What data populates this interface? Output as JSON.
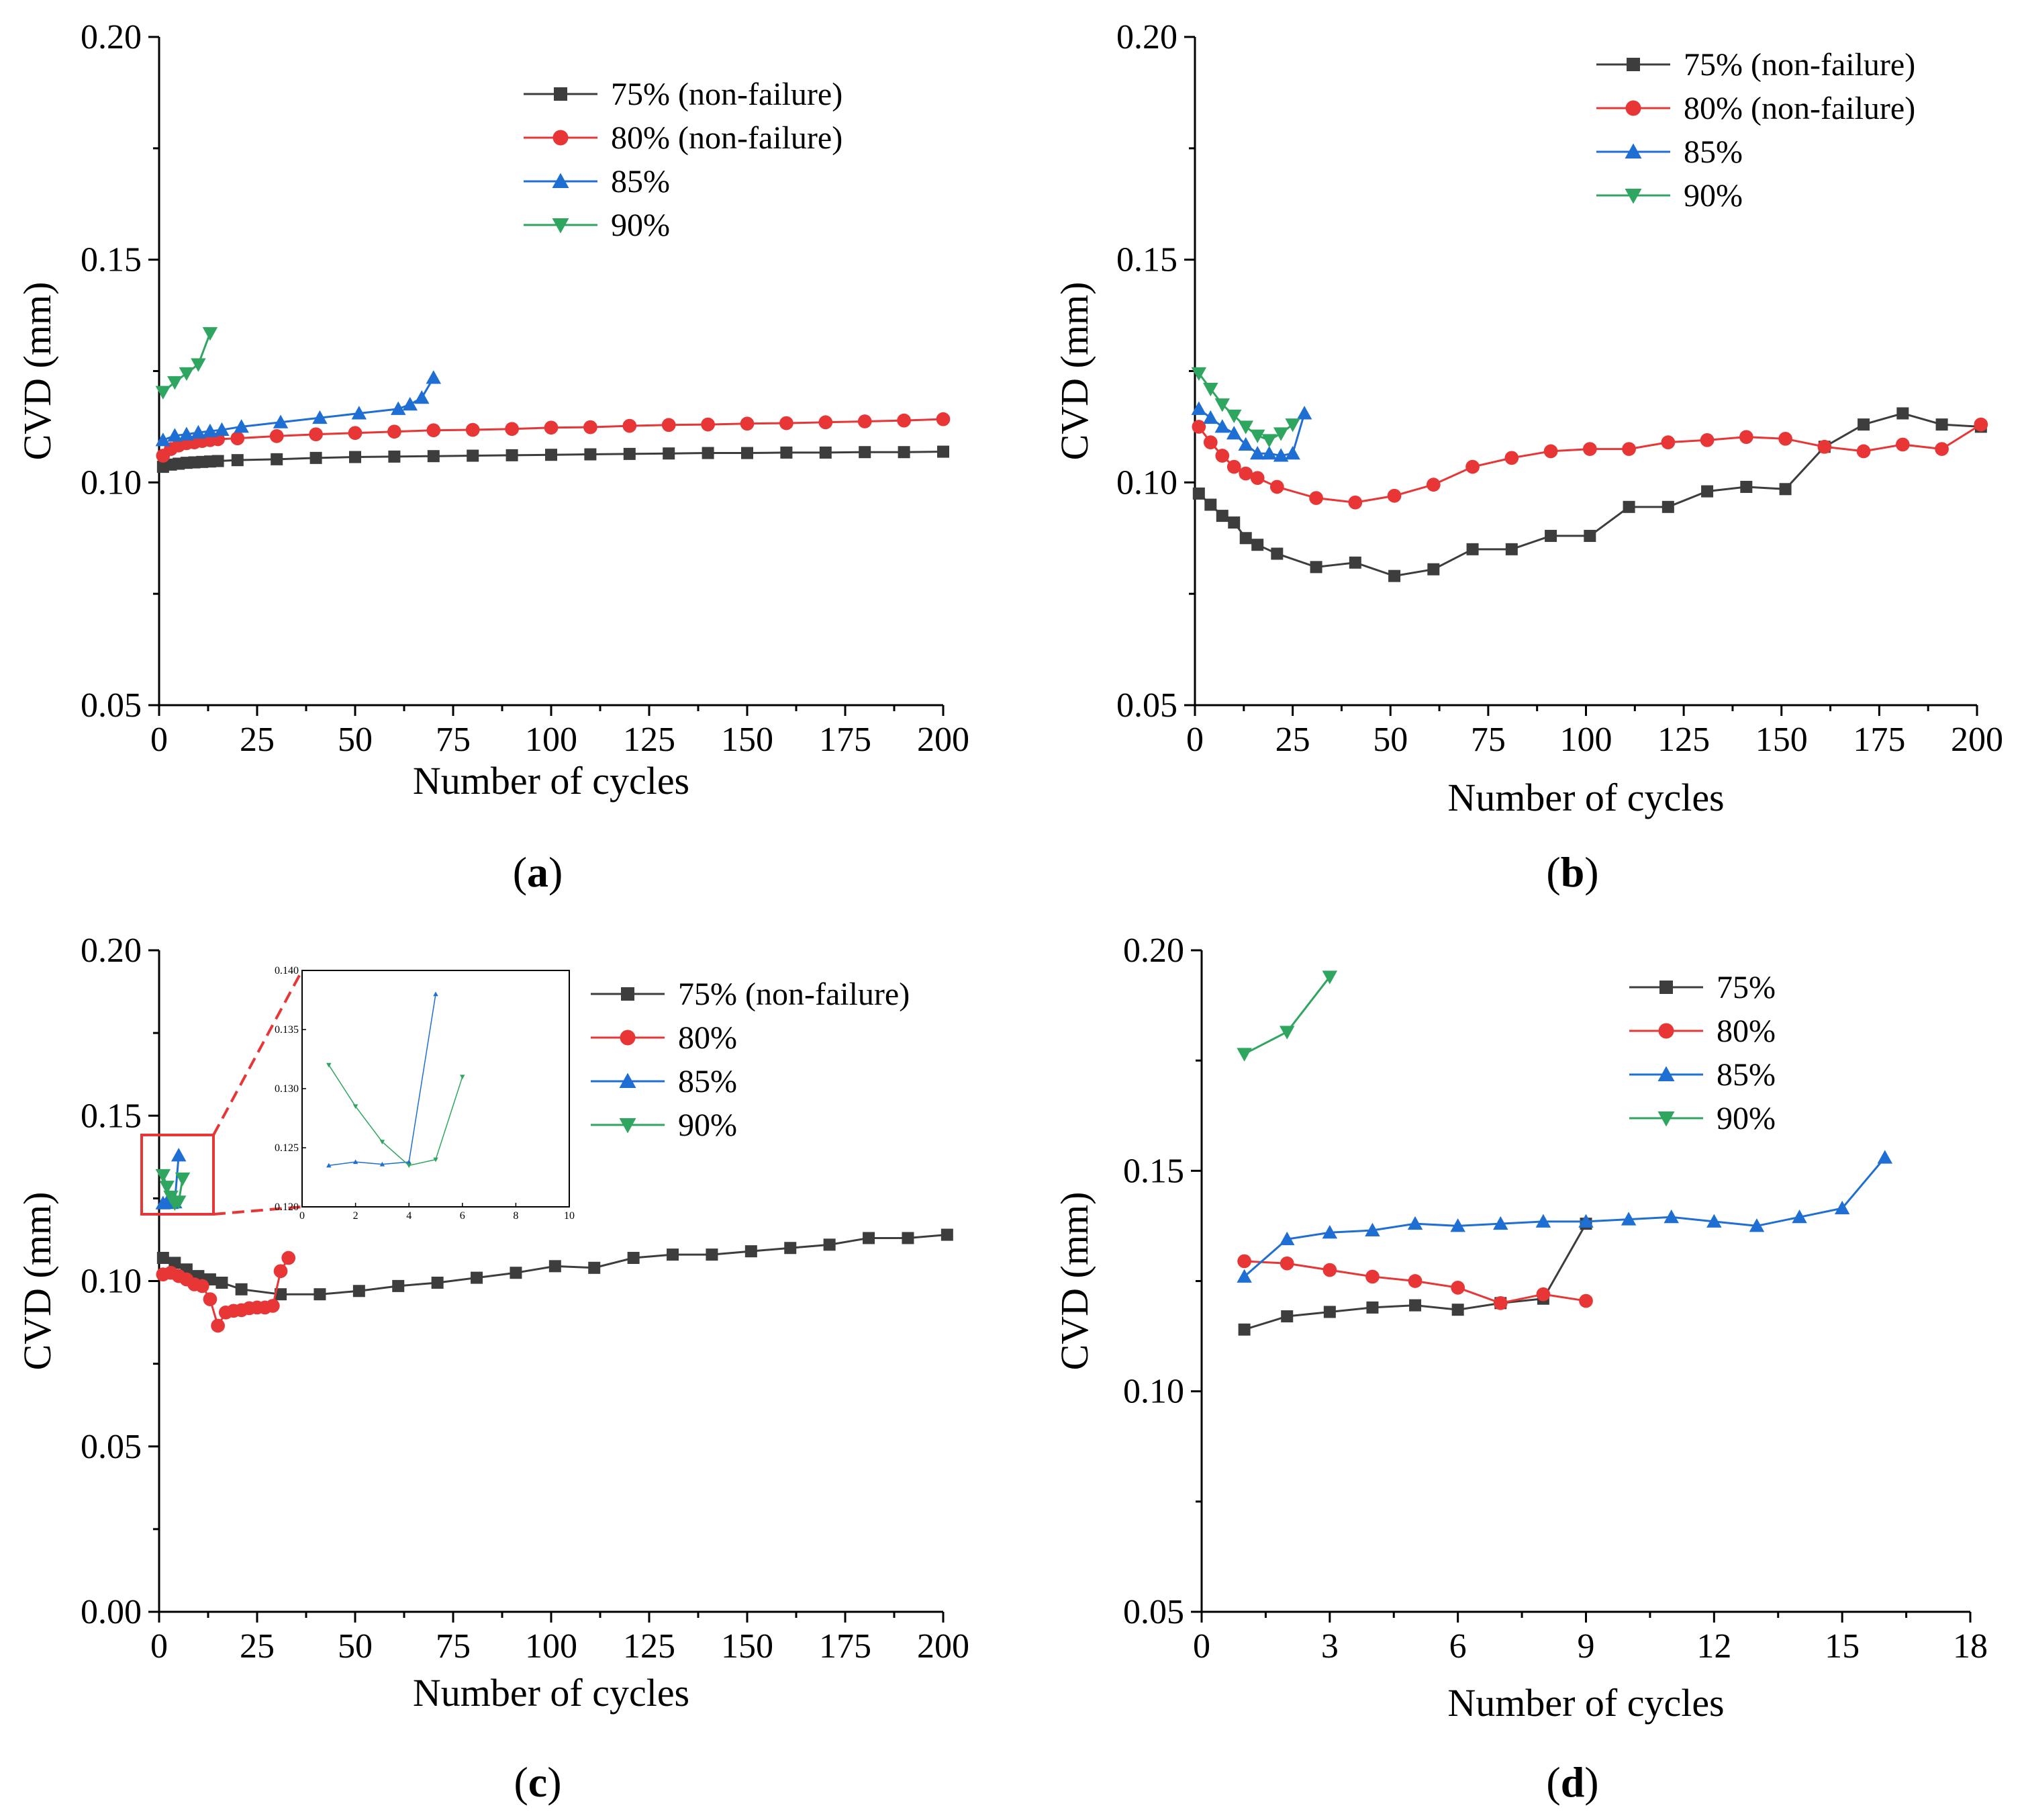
{
  "figure": {
    "captions": [
      "(a)",
      "(b)",
      "(c)",
      "(d)"
    ]
  },
  "chart_data": [
    {
      "panel": "a",
      "caption_letter": "a",
      "type": "line",
      "xlabel": "Number of cycles",
      "ylabel": "CVD (mm)",
      "xlim": [
        0,
        200
      ],
      "ylim": [
        0.05,
        0.2
      ],
      "xticks": [
        "0",
        "25",
        "50",
        "75",
        "100",
        "125",
        "150",
        "175",
        "200"
      ],
      "yticks": [
        "0.05",
        "0.10",
        "0.15",
        "0.20"
      ],
      "legend_position": "top-right",
      "series": [
        {
          "name": "75% (non-failure)",
          "color": "#3d3d3d",
          "marker": "square",
          "x": [
            1,
            3,
            5,
            7,
            9,
            11,
            13,
            15,
            20,
            30,
            40,
            50,
            60,
            70,
            80,
            90,
            100,
            110,
            120,
            130,
            140,
            150,
            160,
            170,
            180,
            190,
            200
          ],
          "y": [
            0.1035,
            0.104,
            0.1042,
            0.1044,
            0.1045,
            0.1046,
            0.1047,
            0.1048,
            0.105,
            0.1052,
            0.1055,
            0.1057,
            0.1058,
            0.1059,
            0.106,
            0.1061,
            0.1062,
            0.1063,
            0.1064,
            0.1065,
            0.1066,
            0.1066,
            0.1067,
            0.1067,
            0.1068,
            0.1068,
            0.1069
          ]
        },
        {
          "name": "80% (non-failure)",
          "color": "#e83535",
          "marker": "circle",
          "x": [
            1,
            3,
            5,
            7,
            9,
            11,
            13,
            15,
            20,
            30,
            40,
            50,
            60,
            70,
            80,
            90,
            100,
            110,
            120,
            130,
            140,
            150,
            160,
            170,
            180,
            190,
            200
          ],
          "y": [
            0.106,
            0.1075,
            0.1083,
            0.1088,
            0.109,
            0.1093,
            0.1095,
            0.1097,
            0.1099,
            0.1104,
            0.1108,
            0.1111,
            0.1114,
            0.1117,
            0.1118,
            0.112,
            0.1123,
            0.1124,
            0.1127,
            0.1129,
            0.113,
            0.1132,
            0.1133,
            0.1135,
            0.1137,
            0.1139,
            0.1142
          ]
        },
        {
          "name": "85%",
          "color": "#1f6ed4",
          "marker": "triangle-up",
          "x": [
            1,
            4,
            7,
            10,
            13,
            16,
            21,
            31,
            41,
            51,
            61,
            64,
            67,
            70
          ],
          "y": [
            0.1095,
            0.1105,
            0.1108,
            0.1112,
            0.1115,
            0.1118,
            0.1125,
            0.1135,
            0.1145,
            0.1155,
            0.1165,
            0.1175,
            0.119,
            0.1235
          ]
        },
        {
          "name": "90%",
          "color": "#2ea660",
          "marker": "triangle-down",
          "x": [
            1,
            4,
            7,
            10,
            13
          ],
          "y": [
            0.1203,
            0.1225,
            0.1245,
            0.1265,
            0.1335
          ]
        }
      ]
    },
    {
      "panel": "b",
      "caption_letter": "b",
      "type": "line",
      "xlabel": "Number of cycles",
      "ylabel": "CVD (mm)",
      "xlim": [
        0,
        200
      ],
      "ylim": [
        0.05,
        0.2
      ],
      "xticks": [
        "0",
        "25",
        "50",
        "75",
        "100",
        "125",
        "150",
        "175",
        "200"
      ],
      "yticks": [
        "0.05",
        "0.10",
        "0.15",
        "0.20"
      ],
      "legend_position": "top-right",
      "series": [
        {
          "name": "75% (non-failure)",
          "color": "#3d3d3d",
          "marker": "square",
          "x": [
            1,
            4,
            7,
            10,
            13,
            16,
            21,
            31,
            41,
            51,
            61,
            71,
            81,
            91,
            101,
            111,
            121,
            131,
            141,
            151,
            161,
            171,
            181,
            191,
            201
          ],
          "y": [
            0.0975,
            0.095,
            0.0925,
            0.091,
            0.0875,
            0.086,
            0.084,
            0.081,
            0.082,
            0.079,
            0.0805,
            0.085,
            0.085,
            0.088,
            0.088,
            0.0945,
            0.0945,
            0.098,
            0.099,
            0.0985,
            0.108,
            0.113,
            0.1155,
            0.113,
            0.1125
          ]
        },
        {
          "name": "80% (non-failure)",
          "color": "#e83535",
          "marker": "circle",
          "x": [
            1,
            4,
            7,
            10,
            13,
            16,
            21,
            31,
            41,
            51,
            61,
            71,
            81,
            91,
            101,
            111,
            121,
            131,
            141,
            151,
            161,
            171,
            181,
            191,
            201
          ],
          "y": [
            0.1125,
            0.109,
            0.106,
            0.1035,
            0.102,
            0.101,
            0.099,
            0.0965,
            0.0955,
            0.097,
            0.0995,
            0.1035,
            0.1055,
            0.107,
            0.1075,
            0.1075,
            0.109,
            0.1095,
            0.1102,
            0.1098,
            0.108,
            0.107,
            0.1085,
            0.1075,
            0.113
          ]
        },
        {
          "name": "85%",
          "color": "#1f6ed4",
          "marker": "triangle-up",
          "x": [
            1,
            4,
            7,
            10,
            13,
            16,
            19,
            22,
            25,
            28
          ],
          "y": [
            0.1165,
            0.1145,
            0.1125,
            0.111,
            0.1085,
            0.1065,
            0.1065,
            0.106,
            0.1065,
            0.1155
          ]
        },
        {
          "name": "90%",
          "color": "#2ea660",
          "marker": "triangle-down",
          "x": [
            1,
            4,
            7,
            10,
            13,
            16,
            19,
            22,
            25
          ],
          "y": [
            0.1245,
            0.121,
            0.1175,
            0.115,
            0.1125,
            0.1105,
            0.1095,
            0.111,
            0.113
          ]
        }
      ]
    },
    {
      "panel": "c",
      "caption_letter": "c",
      "type": "line",
      "xlabel": "Number of cycles",
      "ylabel": "CVD (mm)",
      "xlim": [
        0,
        200
      ],
      "ylim": [
        0,
        0.2
      ],
      "xticks": [
        "0",
        "25",
        "50",
        "75",
        "100",
        "125",
        "150",
        "175",
        "200"
      ],
      "yticks": [
        "0.00",
        "0.05",
        "0.10",
        "0.15",
        "0.20"
      ],
      "legend_position": "top-right",
      "series": [
        {
          "name": "75% (non-failure)",
          "color": "#3d3d3d",
          "marker": "square",
          "x": [
            1,
            4,
            7,
            10,
            13,
            16,
            21,
            31,
            41,
            51,
            61,
            71,
            81,
            91,
            101,
            111,
            121,
            131,
            141,
            151,
            161,
            171,
            181,
            191,
            201
          ],
          "y": [
            0.107,
            0.1055,
            0.1035,
            0.1015,
            0.1005,
            0.0995,
            0.0975,
            0.096,
            0.096,
            0.097,
            0.0985,
            0.0995,
            0.101,
            0.1025,
            0.1045,
            0.104,
            0.107,
            0.108,
            0.108,
            0.109,
            0.11,
            0.111,
            0.113,
            0.113,
            0.114
          ]
        },
        {
          "name": "80%",
          "color": "#e83535",
          "marker": "circle",
          "x": [
            1,
            3,
            5,
            7,
            9,
            11,
            13,
            15,
            17,
            19,
            21,
            23,
            25,
            27,
            29,
            31,
            33
          ],
          "y": [
            0.102,
            0.1025,
            0.1015,
            0.1005,
            0.099,
            0.0985,
            0.0945,
            0.0865,
            0.0905,
            0.091,
            0.0912,
            0.0918,
            0.092,
            0.092,
            0.0925,
            0.103,
            0.107
          ]
        },
        {
          "name": "85%",
          "color": "#1f6ed4",
          "marker": "triangle-up",
          "x": [
            1,
            2,
            3,
            4,
            5
          ],
          "y": [
            0.1235,
            0.1238,
            0.1236,
            0.1238,
            0.138
          ]
        },
        {
          "name": "90%",
          "color": "#2ea660",
          "marker": "triangle-down",
          "x": [
            1,
            2,
            3,
            4,
            5,
            6
          ],
          "y": [
            0.132,
            0.1285,
            0.1255,
            0.1235,
            0.124,
            0.131
          ]
        }
      ],
      "inset": {
        "xlim": [
          0,
          10
        ],
        "ylim": [
          0.12,
          0.14
        ],
        "xticks": [
          "0",
          "2",
          "4",
          "6",
          "8",
          "10"
        ],
        "yticks": [
          "0.120",
          "0.125",
          "0.130",
          "0.135",
          "0.140"
        ]
      }
    },
    {
      "panel": "d",
      "caption_letter": "d",
      "type": "line",
      "xlabel": "Number of cycles",
      "ylabel": "CVD (mm)",
      "xlim": [
        0,
        18
      ],
      "ylim": [
        0.05,
        0.2
      ],
      "xticks": [
        "0",
        "3",
        "6",
        "9",
        "12",
        "15",
        "18"
      ],
      "yticks": [
        "0.05",
        "0.10",
        "0.15",
        "0.20"
      ],
      "legend_position": "top-right",
      "series": [
        {
          "name": "75%",
          "color": "#3d3d3d",
          "marker": "square",
          "x": [
            1,
            2,
            3,
            4,
            5,
            6,
            7,
            8,
            9
          ],
          "y": [
            0.114,
            0.117,
            0.118,
            0.119,
            0.1195,
            0.1185,
            0.12,
            0.121,
            0.138
          ]
        },
        {
          "name": "80%",
          "color": "#e83535",
          "marker": "circle",
          "x": [
            1,
            2,
            3,
            4,
            5,
            6,
            7,
            8,
            9
          ],
          "y": [
            0.1295,
            0.129,
            0.1275,
            0.126,
            0.125,
            0.1235,
            0.12,
            0.122,
            0.1205
          ]
        },
        {
          "name": "85%",
          "color": "#1f6ed4",
          "marker": "triangle-up",
          "x": [
            1,
            2,
            3,
            4,
            5,
            6,
            7,
            8,
            9,
            10,
            11,
            12,
            13,
            14,
            15,
            16
          ],
          "y": [
            0.126,
            0.1345,
            0.136,
            0.1365,
            0.138,
            0.1375,
            0.138,
            0.1385,
            0.1385,
            0.139,
            0.1395,
            0.1385,
            0.1375,
            0.1395,
            0.1415,
            0.153
          ]
        },
        {
          "name": "90%",
          "color": "#2ea660",
          "marker": "triangle-down",
          "x": [
            1,
            2,
            3
          ],
          "y": [
            0.1765,
            0.1815,
            0.194
          ]
        }
      ]
    }
  ]
}
